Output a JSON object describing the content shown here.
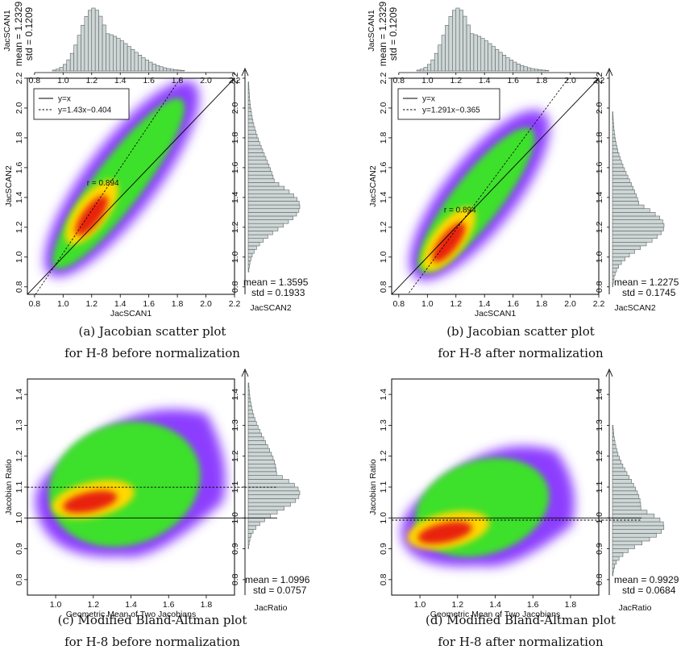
{
  "colors": {
    "histogram_fill": "#cfd6d6",
    "histogram_stroke": "#5a6464",
    "density_outer": "#8c3cff",
    "density_mid": "#3ee02a",
    "density_high": "#ffd800",
    "density_peak": "#e8200a"
  },
  "chart_data": [
    {
      "type": "scatter",
      "subtype": "density scatter with marginal histograms",
      "caption_line1": "(a) Jacobian scatter plot",
      "caption_line2": "for H-8 before normalization",
      "xlabel": "JacSCAN1",
      "ylabel": "JacSCAN2",
      "xlim": [
        0.75,
        2.2
      ],
      "ylim": [
        0.75,
        2.2
      ],
      "x_ticks": [
        "0.8",
        "1.0",
        "1.2",
        "1.4",
        "1.6",
        "1.8",
        "2.0",
        "2.2"
      ],
      "y_ticks": [
        "0.8",
        "1.0",
        "1.2",
        "1.4",
        "1.6",
        "1.8",
        "2.0",
        "2.2"
      ],
      "annotation": "r = 0.894",
      "legend_position": "top-left",
      "legend": [
        "y=x",
        "y=1.43x−0.404"
      ],
      "lines": [
        {
          "name": "y=x",
          "slope": 1,
          "intercept": 0,
          "style": "solid"
        },
        {
          "name": "y=1.43x−0.404",
          "slope": 1.43,
          "intercept": -0.404,
          "style": "dashed"
        }
      ],
      "density": {
        "center_x": 1.2,
        "center_y": 1.3,
        "extent_x": [
          0.92,
          1.9
        ],
        "extent_y": [
          0.9,
          2.15
        ]
      },
      "top_histogram": {
        "variable": "JacSCAN1",
        "mean_label": "mean = 1.2329",
        "std_label": "std = 0.1209",
        "ticks": [
          "0.8",
          "1.0",
          "1.2",
          "1.4",
          "1.6",
          "1.8",
          "2.0",
          "2.2"
        ],
        "mean": 1.2329,
        "std": 0.1209
      },
      "side_histogram": {
        "variable": "JacSCAN2",
        "mean_label": "mean = 1.3595",
        "std_label": "std = 0.1933",
        "ticks": [
          "0.8",
          "1.0",
          "1.2",
          "1.4",
          "1.6",
          "1.8",
          "2.0",
          "2.2"
        ],
        "mean": 1.3595,
        "std": 0.1933
      }
    },
    {
      "type": "scatter",
      "subtype": "density scatter with marginal histograms",
      "caption_line1": "(b) Jacobian scatter plot",
      "caption_line2": "for H-8 after normalization",
      "xlabel": "JacSCAN1",
      "ylabel": "JacSCAN2",
      "xlim": [
        0.75,
        2.2
      ],
      "ylim": [
        0.75,
        2.2
      ],
      "x_ticks": [
        "0.8",
        "1.0",
        "1.2",
        "1.4",
        "1.6",
        "1.8",
        "2.0",
        "2.2"
      ],
      "y_ticks": [
        "0.8",
        "1.0",
        "1.2",
        "1.4",
        "1.6",
        "1.8",
        "2.0",
        "2.2"
      ],
      "annotation": "r = 0.894",
      "legend_position": "top-left",
      "legend": [
        "y=x",
        "y=1.291x−0.365"
      ],
      "lines": [
        {
          "name": "y=x",
          "slope": 1,
          "intercept": 0,
          "style": "solid"
        },
        {
          "name": "y=1.291x−0.365",
          "slope": 1.291,
          "intercept": -0.365,
          "style": "dashed"
        }
      ],
      "density": {
        "center_x": 1.15,
        "center_y": 1.12,
        "extent_x": [
          0.93,
          1.8
        ],
        "extent_y": [
          0.88,
          1.95
        ]
      },
      "top_histogram": {
        "variable": "JacSCAN1",
        "mean_label": "mean = 1.2329",
        "std_label": "std = 0.1209",
        "ticks": [
          "0.8",
          "1.0",
          "1.2",
          "1.4",
          "1.6",
          "1.8",
          "2.0",
          "2.2"
        ],
        "mean": 1.2329,
        "std": 0.1209
      },
      "side_histogram": {
        "variable": "JacSCAN2",
        "mean_label": "mean = 1.2275",
        "std_label": "std = 0.1745",
        "ticks": [
          "0.8",
          "1.0",
          "1.2",
          "1.4",
          "1.6",
          "1.8",
          "2.0",
          "2.2"
        ],
        "mean": 1.2275,
        "std": 0.1745
      }
    },
    {
      "type": "scatter",
      "subtype": "modified Bland-Altman density plot with marginal histogram",
      "caption_line1": "(c) Modified Bland-Altman plot",
      "caption_line2": "for H-8 before normalization",
      "xlabel": "Geometric Mean of Two Jacobians",
      "ylabel": "Jacobian Ratio",
      "xlim": [
        0.85,
        1.95
      ],
      "ylim": [
        0.75,
        1.45
      ],
      "x_ticks": [
        "1.0",
        "1.2",
        "1.4",
        "1.6",
        "1.8"
      ],
      "y_ticks": [
        "0.8",
        "0.9",
        "1.0",
        "1.1",
        "1.2",
        "1.3",
        "1.4"
      ],
      "hlines": [
        {
          "y": 1.0,
          "style": "solid"
        },
        {
          "y": 1.0996,
          "style": "dashed"
        }
      ],
      "density": {
        "center_x": 1.2,
        "center_y": 1.06,
        "extent_x": [
          0.87,
          1.93
        ],
        "extent_y": [
          0.87,
          1.39
        ]
      },
      "side_histogram": {
        "variable": "JacRatio",
        "mean_label": "mean = 1.0996",
        "std_label": "std = 0.0757",
        "ticks": [
          "0.8",
          "0.9",
          "1.0",
          "1.1",
          "1.2",
          "1.3",
          "1.4"
        ],
        "mean": 1.0996,
        "std": 0.0757
      }
    },
    {
      "type": "scatter",
      "subtype": "modified Bland-Altman density plot with marginal histogram",
      "caption_line1": "(d) Modified Bland-Altman plot",
      "caption_line2": "for H-8 after normalization",
      "xlabel": "Geometric Mean of Two Jacobians",
      "ylabel": "Jacobian Ratio",
      "xlim": [
        0.85,
        1.95
      ],
      "ylim": [
        0.75,
        1.45
      ],
      "x_ticks": [
        "1.0",
        "1.2",
        "1.4",
        "1.6",
        "1.8"
      ],
      "y_ticks": [
        "0.8",
        "0.9",
        "1.0",
        "1.1",
        "1.2",
        "1.3",
        "1.4"
      ],
      "hlines": [
        {
          "y": 1.0,
          "style": "solid"
        },
        {
          "y": 0.9929,
          "style": "dashed"
        }
      ],
      "density": {
        "center_x": 1.15,
        "center_y": 0.96,
        "extent_x": [
          0.88,
          1.85
        ],
        "extent_y": [
          0.84,
          1.27
        ]
      },
      "side_histogram": {
        "variable": "JacRatio",
        "mean_label": "mean = 0.9929",
        "std_label": "std = 0.0684",
        "ticks": [
          "0.8",
          "0.9",
          "1.0",
          "1.1",
          "1.2",
          "1.3",
          "1.4"
        ],
        "mean": 0.9929,
        "std": 0.0684
      }
    }
  ]
}
